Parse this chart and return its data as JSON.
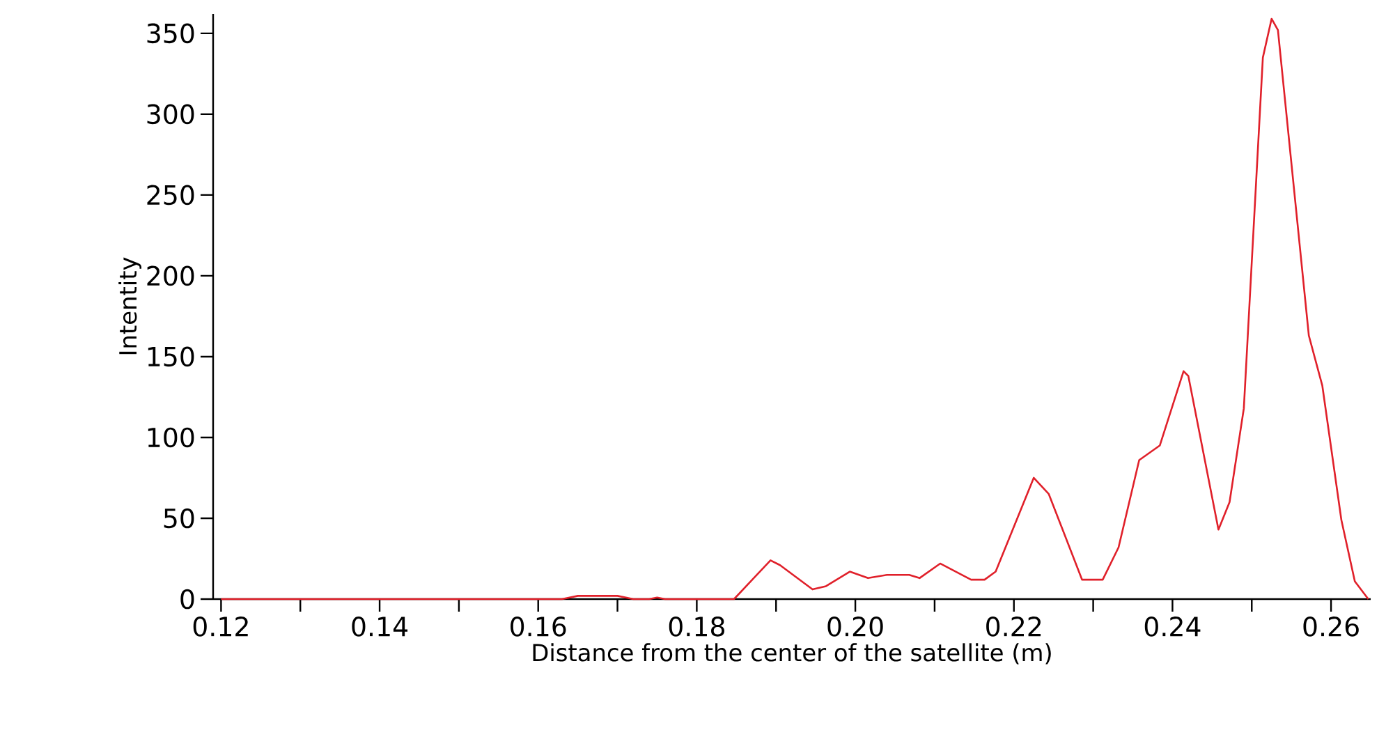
{
  "chart_data": {
    "type": "line",
    "xlabel": "Distance from the center of the satellite (m)",
    "ylabel": "Intentity",
    "xlim": [
      0.119,
      0.265
    ],
    "ylim": [
      0,
      362
    ],
    "xticks": [
      {
        "value": 0.12,
        "label": "0.12"
      },
      {
        "value": 0.13,
        "label": null
      },
      {
        "value": 0.14,
        "label": "0.14"
      },
      {
        "value": 0.15,
        "label": null
      },
      {
        "value": 0.16,
        "label": "0.16"
      },
      {
        "value": 0.17,
        "label": null
      },
      {
        "value": 0.18,
        "label": "0.18"
      },
      {
        "value": 0.19,
        "label": null
      },
      {
        "value": 0.2,
        "label": "0.20"
      },
      {
        "value": 0.21,
        "label": null
      },
      {
        "value": 0.22,
        "label": "0.22"
      },
      {
        "value": 0.23,
        "label": null
      },
      {
        "value": 0.24,
        "label": "0.24"
      },
      {
        "value": 0.25,
        "label": null
      },
      {
        "value": 0.26,
        "label": "0.26"
      }
    ],
    "yticks": [
      0,
      50,
      100,
      150,
      200,
      250,
      300,
      350
    ],
    "marker": "none",
    "line_style": "solid",
    "series": [
      {
        "color": "#e0202a",
        "x": [
          0.12,
          0.14,
          0.16,
          0.163,
          0.165,
          0.17,
          0.172,
          0.174,
          0.175,
          0.176,
          0.18,
          0.1847,
          0.187,
          0.1893,
          0.1905,
          0.1946,
          0.1963,
          0.1993,
          0.2016,
          0.204,
          0.2068,
          0.2081,
          0.2107,
          0.2146,
          0.2163,
          0.2177,
          0.2225,
          0.2244,
          0.2286,
          0.2312,
          0.2332,
          0.2358,
          0.2384,
          0.2414,
          0.242,
          0.2458,
          0.2472,
          0.249,
          0.2514,
          0.2525,
          0.2533,
          0.2572,
          0.2589,
          0.2613,
          0.263,
          0.2647
        ],
        "values": [
          0,
          0,
          0,
          0,
          2,
          2,
          0,
          0,
          1,
          0,
          0,
          0,
          12,
          24,
          21,
          6,
          8,
          17,
          13,
          15,
          15,
          13,
          22,
          12,
          12,
          17,
          75,
          65,
          12,
          12,
          32,
          86,
          95,
          141,
          138,
          43,
          60,
          118,
          335,
          359,
          352,
          163,
          132,
          49,
          11,
          0
        ]
      }
    ]
  }
}
